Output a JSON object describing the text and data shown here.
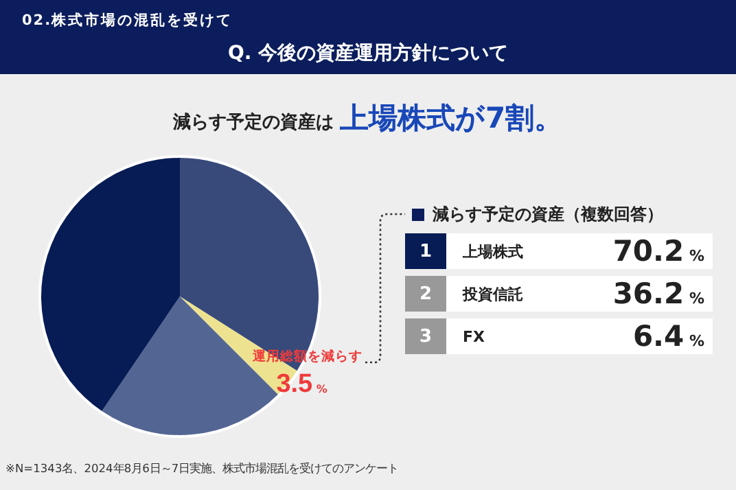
{
  "chart_data": [
    {
      "type": "pie",
      "title": "Q. 今後の資産運用方針について",
      "subtitle": "02.株式市場の混乱を受けて",
      "annotations": [
        "減らす予定の資産は",
        "上場株式が7割。",
        "※N=1343名、2024年8月6日～7日実施、株式市場混乱を受けてのアンケート"
      ],
      "categories": [
        null,
        "運用総額を減らす",
        null,
        null
      ],
      "values": [
        34,
        3.5,
        22,
        40.5
      ],
      "colors": [
        "#384a7a",
        "#ede28f",
        "#536592",
        "#071c55"
      ],
      "value_labels": [
        null,
        "3.5%",
        null,
        null
      ],
      "legend": false
    },
    {
      "type": "other",
      "title": "減らす予定の資産（複数回答）",
      "categories": [
        "上場株式",
        "投資信託",
        "FX"
      ],
      "values": [
        70.2,
        36.2,
        6.4
      ],
      "value_labels": [
        "70.2%",
        "36.2%",
        "6.4%"
      ],
      "annotations": [
        "1",
        "2",
        "3"
      ]
    }
  ]
}
